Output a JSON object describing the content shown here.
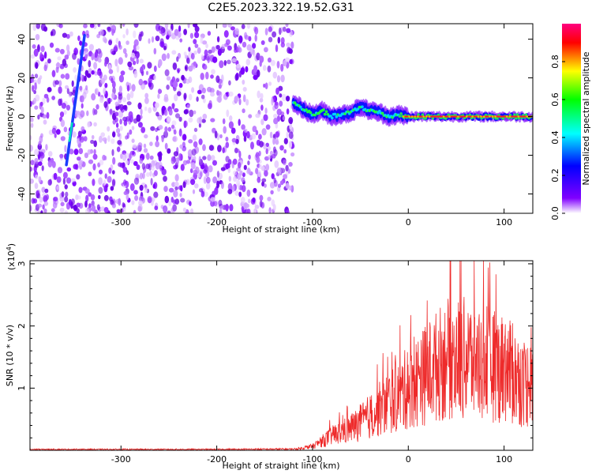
{
  "figure": {
    "title": "C2E5.2023.322.19.52.G31"
  },
  "chart_data": [
    {
      "type": "heatmap",
      "name": "spectrogram",
      "xlabel": "Height of straight line (km)",
      "ylabel": "Frequency (Hz)",
      "xlim": [
        -395,
        130
      ],
      "ylim": [
        -50,
        48
      ],
      "xticks": [
        -300,
        -200,
        -100,
        0,
        100
      ],
      "yticks": [
        -40,
        -20,
        0,
        20,
        40
      ],
      "noise_region_x": [
        -395,
        -120
      ],
      "signal_track": {
        "x": [
          -120,
          -110,
          -100,
          -90,
          -80,
          -70,
          -60,
          -50,
          -40,
          -30,
          -20,
          -10,
          0,
          20,
          40,
          60,
          80,
          100,
          130
        ],
        "y": [
          7,
          4,
          1,
          3,
          0,
          1,
          2,
          5,
          3,
          2,
          0,
          1,
          0,
          0,
          0,
          0,
          0,
          0,
          0
        ]
      },
      "meteor_streak": {
        "x": [
          -357,
          -338
        ],
        "y": [
          -25,
          42
        ]
      },
      "colorbar": {
        "label": "Normalized spectral amplitude",
        "range": [
          0,
          1
        ],
        "ticks": [
          0.0,
          0.2,
          0.4,
          0.6,
          0.8
        ],
        "tick_labels": [
          "0.0",
          "0.2",
          "0.4",
          "0.6",
          "0.8"
        ],
        "colors": [
          "#ffffff",
          "#8000ff",
          "#0000ff",
          "#00ffff",
          "#00ff00",
          "#ffff00",
          "#ff0000",
          "#ff0080"
        ]
      }
    },
    {
      "type": "line",
      "name": "snr",
      "xlabel": "Height of straight line (km)",
      "ylabel": "SNR (10 * v/v)",
      "multiplier": "(x10",
      "multiplier_exp": "4",
      "multiplier_close": ")",
      "xlim": [
        -395,
        130
      ],
      "ylim": [
        0,
        3.05
      ],
      "xticks": [
        -300,
        -200,
        -100,
        0,
        100
      ],
      "yticks": [
        1,
        2,
        3
      ],
      "color": "#ee2a2a",
      "series": [
        {
          "x": [
            -395,
            -300,
            -200,
            -120,
            -100,
            -80,
            -60,
            -40,
            -20,
            0,
            20,
            40,
            60,
            80,
            100,
            120,
            130
          ],
          "y": [
            0.02,
            0.02,
            0.02,
            0.03,
            0.08,
            0.3,
            0.45,
            0.7,
            1.0,
            1.3,
            1.6,
            1.9,
            1.9,
            1.8,
            1.7,
            1.4,
            1.4
          ]
        }
      ]
    }
  ]
}
